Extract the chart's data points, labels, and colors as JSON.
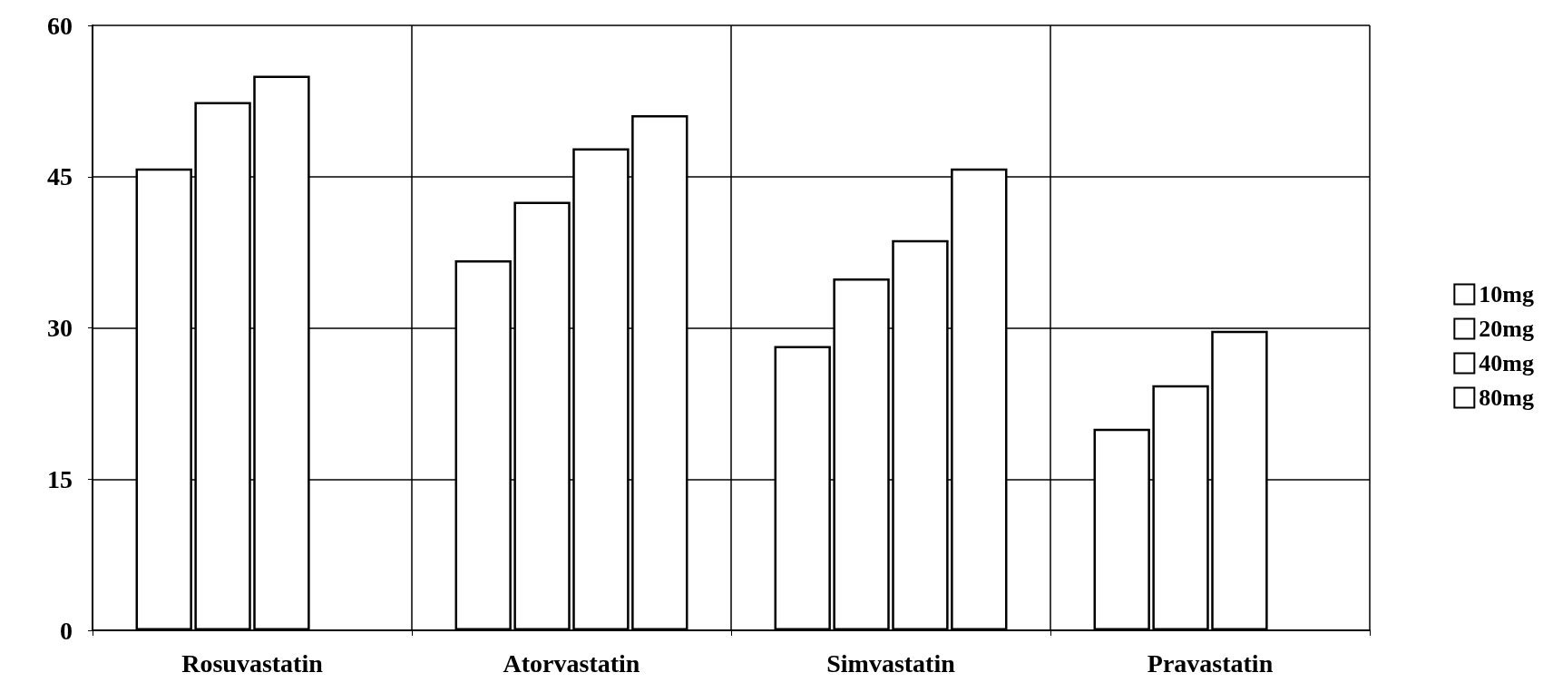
{
  "chart_data": {
    "type": "bar",
    "categories": [
      "Rosuvastatin",
      "Atorvastatin",
      "Simvastatin",
      "Pravastatin"
    ],
    "series": [
      {
        "name": "10mg",
        "color": "#ffffff",
        "values": [
          45.8,
          36.7,
          28.2,
          20.0
        ]
      },
      {
        "name": "20mg",
        "color": "#ffffff",
        "values": [
          52.4,
          42.5,
          34.9,
          24.3
        ]
      },
      {
        "name": "40mg",
        "color": "#ffffff",
        "values": [
          55.0,
          47.8,
          38.7,
          29.7
        ]
      },
      {
        "name": "80mg",
        "color": "#ffffff",
        "values": [
          null,
          51.1,
          45.8,
          null
        ]
      }
    ],
    "ylim": [
      0,
      60
    ],
    "yticks": [
      0,
      15,
      30,
      45,
      60
    ],
    "grid": true,
    "legend": "right"
  }
}
